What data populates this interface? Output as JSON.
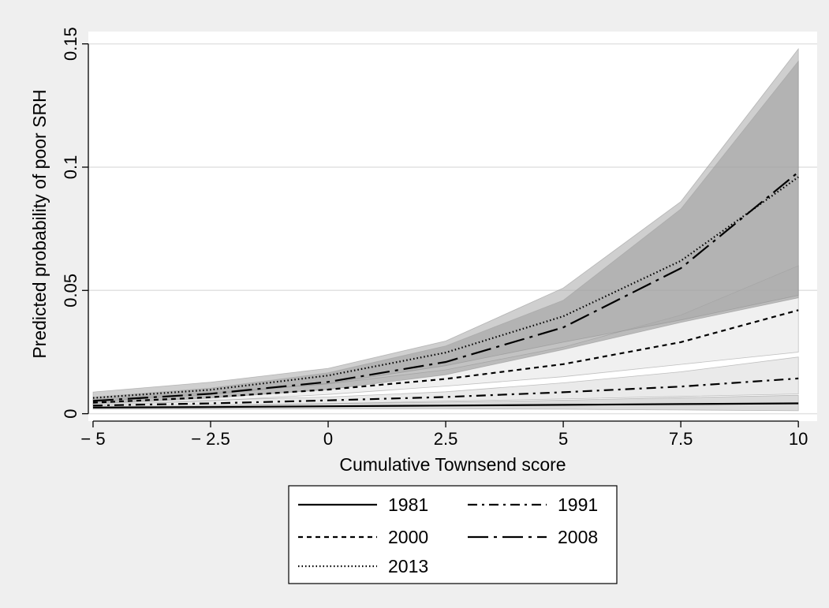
{
  "chart_data": {
    "type": "line",
    "title": "",
    "xlabel": "Cumulative Townsend score",
    "ylabel": "Predicted probability of poor SRH",
    "x": [
      -5,
      -2.5,
      0,
      2.5,
      5,
      7.5,
      10
    ],
    "xlim": [
      -5.1,
      10.4
    ],
    "ylim": [
      -0.003,
      0.155
    ],
    "x_ticks": [
      -5,
      -2.5,
      0,
      2.5,
      5,
      7.5,
      10
    ],
    "x_tick_labels": [
      "− 5",
      "− 2.5",
      "0",
      "2.5",
      "5",
      "7.5",
      "10"
    ],
    "y_ticks": [
      0,
      0.05,
      0.1,
      0.15
    ],
    "y_tick_labels": [
      "0",
      "0.05",
      "0.1",
      "0.15"
    ],
    "grid": "horizontal",
    "legend_position": "bottom",
    "series": [
      {
        "name": "1981",
        "values": [
          0.0025,
          0.0027,
          0.003,
          0.0033,
          0.0036,
          0.0039,
          0.0042
        ],
        "ci_lower": [
          0.0018,
          0.0019,
          0.002,
          0.002,
          0.0018,
          0.0015,
          0.0012
        ],
        "ci_upper": [
          0.0033,
          0.0036,
          0.0041,
          0.0047,
          0.0055,
          0.0065,
          0.0075
        ],
        "dash": "none",
        "band_color": "#bdbdbd"
      },
      {
        "name": "1991",
        "values": [
          0.0033,
          0.0042,
          0.0054,
          0.0068,
          0.0087,
          0.011,
          0.0143
        ],
        "ci_lower": [
          0.0024,
          0.0031,
          0.0041,
          0.0051,
          0.006,
          0.007,
          0.008
        ],
        "ci_upper": [
          0.0042,
          0.0055,
          0.0068,
          0.0089,
          0.0125,
          0.017,
          0.023
        ],
        "dash": "12,6,3,6",
        "band_color": "#d9d9d9"
      },
      {
        "name": "2000",
        "values": [
          0.0045,
          0.0067,
          0.0098,
          0.0141,
          0.0201,
          0.029,
          0.042
        ],
        "ci_lower": [
          0.0035,
          0.0052,
          0.0078,
          0.0112,
          0.015,
          0.02,
          0.025
        ],
        "ci_upper": [
          0.0057,
          0.0085,
          0.0121,
          0.0178,
          0.027,
          0.04,
          0.06
        ],
        "dash": "6,5",
        "band_color": "#e3e3e3"
      },
      {
        "name": "2008",
        "values": [
          0.0052,
          0.0081,
          0.0129,
          0.021,
          0.035,
          0.059,
          0.098
        ],
        "ci_lower": [
          0.004,
          0.0063,
          0.0098,
          0.0158,
          0.026,
          0.037,
          0.047
        ],
        "ci_upper": [
          0.0067,
          0.0104,
          0.0166,
          0.0275,
          0.046,
          0.083,
          0.143
        ],
        "dash": "26,7,4,7",
        "band_color": "#8f8f8f"
      },
      {
        "name": "2013",
        "values": [
          0.0064,
          0.0097,
          0.0155,
          0.0248,
          0.0395,
          0.062,
          0.096
        ],
        "ci_lower": [
          0.005,
          0.0078,
          0.0123,
          0.0195,
          0.029,
          0.038,
          0.048
        ],
        "ci_upper": [
          0.0088,
          0.0128,
          0.0184,
          0.0295,
          0.051,
          0.086,
          0.148
        ],
        "dash": "1.5,3",
        "band_color": "#a8a8a8"
      }
    ]
  },
  "legend": {
    "items": [
      {
        "name": "1981",
        "label": "1981",
        "dash": "none"
      },
      {
        "name": "1991",
        "label": "1991",
        "dash": "12,6,3,6"
      },
      {
        "name": "2000",
        "label": "2000",
        "dash": "6,5"
      },
      {
        "name": "2008",
        "label": "2008",
        "dash": "26,7,4,7"
      },
      {
        "name": "2013",
        "label": "2013",
        "dash": "1.5,3"
      }
    ]
  },
  "colors": {
    "outer_background": "#efefef",
    "plot_background": "#ffffff",
    "gridline": "#e2e2e2",
    "line": "#000000",
    "legend_border": "#000000"
  }
}
